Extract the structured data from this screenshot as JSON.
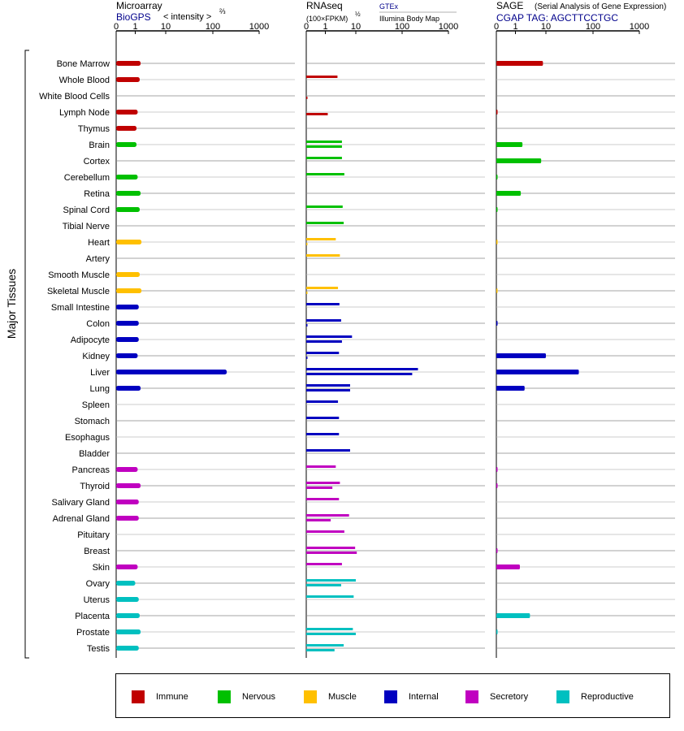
{
  "panels": {
    "microarray": {
      "title": "Microarray",
      "source": "BioGPS",
      "measure": "< intensity >",
      "measure_exp": "⅔",
      "ticks": [
        "0",
        "1",
        "10",
        "100",
        "1000"
      ]
    },
    "rnaseq": {
      "title": "RNAseq",
      "measure": "(100×FPKM)",
      "measure_exp": "½",
      "source_top": "GTEx",
      "source_bottom": "Illumina Body Map",
      "ticks": [
        "0",
        "1",
        "10",
        "100",
        "1000"
      ]
    },
    "sage": {
      "title": "SAGE",
      "subtitle": "(Serial Analysis of Gene Expression)",
      "tag": "CGAP TAG: AGCTTCCTGC",
      "ticks": [
        "0",
        "1",
        "10",
        "100",
        "1000"
      ]
    }
  },
  "y_group_label": "Major Tissues",
  "legend": [
    {
      "label": "Immune",
      "color": "#c00000"
    },
    {
      "label": "Nervous",
      "color": "#00c000"
    },
    {
      "label": "Muscle",
      "color": "#ffc000"
    },
    {
      "label": "Internal",
      "color": "#0000c0"
    },
    {
      "label": "Secretory",
      "color": "#c000c0"
    },
    {
      "label": "Reproductive",
      "color": "#00c0c0"
    }
  ],
  "chart_data": {
    "type": "bar",
    "x_scale": "log",
    "x_range": [
      0,
      1000
    ],
    "tissues": [
      {
        "name": "Bone Marrow",
        "group": "Immune",
        "microarray": 1.5,
        "gtex": null,
        "ibm": null,
        "sage": 8
      },
      {
        "name": "Whole Blood",
        "group": "Immune",
        "microarray": 1.4,
        "gtex": 2.5,
        "ibm": null,
        "sage": null
      },
      {
        "name": "White Blood Cells",
        "group": "Immune",
        "microarray": null,
        "gtex": null,
        "ibm": 0.03,
        "sage": null
      },
      {
        "name": "Lymph Node",
        "group": "Immune",
        "microarray": 1.2,
        "gtex": null,
        "ibm": 1.2,
        "sage": 0.02
      },
      {
        "name": "Thymus",
        "group": "Immune",
        "microarray": 1.1,
        "gtex": null,
        "ibm": null,
        "sage": null
      },
      {
        "name": "Brain",
        "group": "Nervous",
        "microarray": 1.1,
        "gtex": 3.5,
        "ibm": 3.5,
        "sage": 1.7
      },
      {
        "name": "Cortex",
        "group": "Nervous",
        "microarray": null,
        "gtex": 3.5,
        "ibm": null,
        "sage": 7
      },
      {
        "name": "Cerebellum",
        "group": "Nervous",
        "microarray": 1.2,
        "gtex": 4.2,
        "ibm": null,
        "sage": 0.02
      },
      {
        "name": "Retina",
        "group": "Nervous",
        "microarray": 1.5,
        "gtex": null,
        "ibm": null,
        "sage": 1.5
      },
      {
        "name": "Spinal Cord",
        "group": "Nervous",
        "microarray": 1.4,
        "gtex": 3.7,
        "ibm": null,
        "sage": 0.02
      },
      {
        "name": "Tibial Nerve",
        "group": "Nervous",
        "microarray": null,
        "gtex": 4.0,
        "ibm": null,
        "sage": null
      },
      {
        "name": "Heart",
        "group": "Muscle",
        "microarray": 1.6,
        "gtex": 2.2,
        "ibm": 0.02,
        "sage": 0.01
      },
      {
        "name": "Artery",
        "group": "Muscle",
        "microarray": null,
        "gtex": 3.0,
        "ibm": null,
        "sage": null
      },
      {
        "name": "Smooth Muscle",
        "group": "Muscle",
        "microarray": 1.4,
        "gtex": null,
        "ibm": null,
        "sage": null
      },
      {
        "name": "Skeletal Muscle",
        "group": "Muscle",
        "microarray": 1.6,
        "gtex": 2.6,
        "ibm": 0.02,
        "sage": 0.01
      },
      {
        "name": "Small Intestine",
        "group": "Internal",
        "microarray": 1.3,
        "gtex": 2.9,
        "ibm": null,
        "sage": null
      },
      {
        "name": "Colon",
        "group": "Internal",
        "microarray": 1.3,
        "gtex": 3.3,
        "ibm": 0.03,
        "sage": 0.02
      },
      {
        "name": "Adipocyte",
        "group": "Internal",
        "microarray": 1.3,
        "gtex": 7.5,
        "ibm": 3.5,
        "sage": null
      },
      {
        "name": "Kidney",
        "group": "Internal",
        "microarray": 1.2,
        "gtex": 2.8,
        "ibm": 0.03,
        "sage": 10
      },
      {
        "name": "Liver",
        "group": "Internal",
        "microarray": 200,
        "gtex": 220,
        "ibm": 165,
        "sage": 50
      },
      {
        "name": "Lung",
        "group": "Internal",
        "microarray": 1.5,
        "gtex": 6.5,
        "ibm": 6.5,
        "sage": 2.0
      },
      {
        "name": "Spleen",
        "group": "Internal",
        "microarray": null,
        "gtex": 2.6,
        "ibm": null,
        "sage": null
      },
      {
        "name": "Stomach",
        "group": "Internal",
        "microarray": null,
        "gtex": 2.8,
        "ibm": null,
        "sage": null
      },
      {
        "name": "Esophagus",
        "group": "Internal",
        "microarray": null,
        "gtex": 2.8,
        "ibm": null,
        "sage": null
      },
      {
        "name": "Bladder",
        "group": "Internal",
        "microarray": null,
        "gtex": 6.5,
        "ibm": null,
        "sage": null
      },
      {
        "name": "Pancreas",
        "group": "Secretory",
        "microarray": 1.2,
        "gtex": 2.2,
        "ibm": null,
        "sage": 0.02
      },
      {
        "name": "Thyroid",
        "group": "Secretory",
        "microarray": 1.5,
        "gtex": 3.0,
        "ibm": 1.7,
        "sage": 0.02
      },
      {
        "name": "Salivary Gland",
        "group": "Secretory",
        "microarray": 1.3,
        "gtex": 2.8,
        "ibm": null,
        "sage": null
      },
      {
        "name": "Adrenal Gland",
        "group": "Secretory",
        "microarray": 1.3,
        "gtex": 6.0,
        "ibm": 1.5,
        "sage": null
      },
      {
        "name": "Pituitary",
        "group": "Secretory",
        "microarray": null,
        "gtex": 4.2,
        "ibm": null,
        "sage": null
      },
      {
        "name": "Breast",
        "group": "Secretory",
        "microarray": null,
        "gtex": 9.5,
        "ibm": 10.5,
        "sage": 0.02
      },
      {
        "name": "Skin",
        "group": "Secretory",
        "microarray": 1.2,
        "gtex": 3.5,
        "ibm": null,
        "sage": 1.4
      },
      {
        "name": "Ovary",
        "group": "Reproductive",
        "microarray": 1.0,
        "gtex": 10,
        "ibm": 3.3,
        "sage": null
      },
      {
        "name": "Uterus",
        "group": "Reproductive",
        "microarray": 1.3,
        "gtex": 8.5,
        "ibm": null,
        "sage": null
      },
      {
        "name": "Placenta",
        "group": "Reproductive",
        "microarray": 1.4,
        "gtex": null,
        "ibm": null,
        "sage": 3.0
      },
      {
        "name": "Prostate",
        "group": "Reproductive",
        "microarray": 1.5,
        "gtex": 8.0,
        "ibm": 10,
        "sage": 0.02
      },
      {
        "name": "Testis",
        "group": "Reproductive",
        "microarray": 1.3,
        "gtex": 4.0,
        "ibm": 2.0,
        "sage": null
      }
    ]
  }
}
